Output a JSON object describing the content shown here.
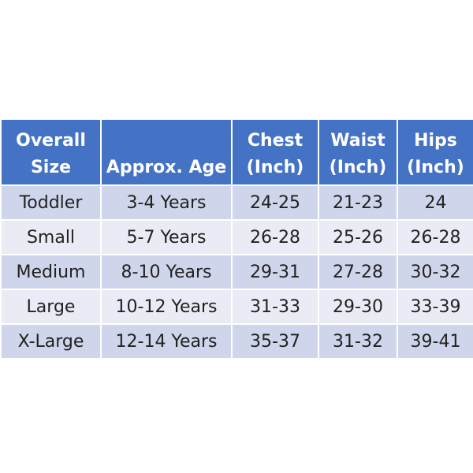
{
  "table": {
    "header": [
      [
        "Overall",
        "Size"
      ],
      [
        "Approx. Age"
      ],
      [
        "Chest",
        "(Inch)"
      ],
      [
        "Waist",
        "(Inch)"
      ],
      [
        "Hips",
        "(Inch)"
      ]
    ],
    "rows": [
      [
        "Toddler",
        "3-4 Years",
        "24-25",
        "21-23",
        "24"
      ],
      [
        "Small",
        "5-7 Years",
        "26-28",
        "25-26",
        "26-28"
      ],
      [
        "Medium",
        "8-10 Years",
        "29-31",
        "27-28",
        "30-32"
      ],
      [
        "Large",
        "10-12 Years",
        "31-33",
        "29-30",
        "33-39"
      ],
      [
        "X-Large",
        "12-14 Years",
        "35-37",
        "31-32",
        "39-41"
      ]
    ]
  }
}
